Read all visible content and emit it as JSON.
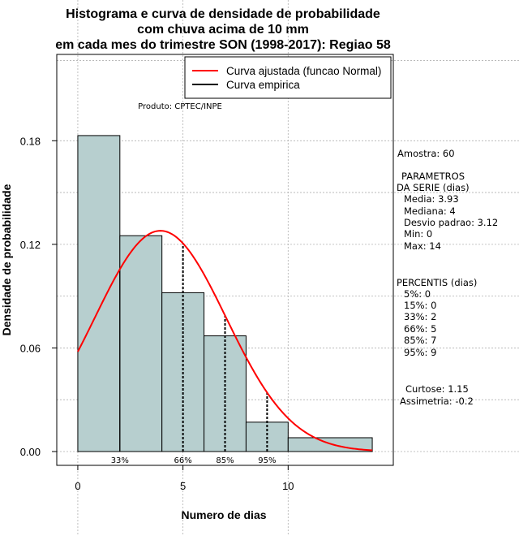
{
  "chart_data": {
    "type": "bar",
    "title_lines": [
      "Histograma e curva de densidade de probabilidade",
      "com chuva acima de 10 mm",
      "em cada mes do trimestre SON (1998-2017): Regiao 58"
    ],
    "xlabel": "Numero de dias",
    "ylabel": "Densidade de probabilidade",
    "xlim": [
      -1,
      15
    ],
    "ylim": [
      -0.008,
      0.23
    ],
    "x_ticks": [
      0,
      5,
      10
    ],
    "y_ticks": [
      0.0,
      0.06,
      0.12,
      0.18
    ],
    "y_tick_labels": [
      "0.00",
      "0.06",
      "0.12",
      "0.18"
    ],
    "bins": [
      {
        "x0": 0,
        "x1": 2,
        "density": 0.183
      },
      {
        "x0": 2,
        "x1": 4,
        "density": 0.125
      },
      {
        "x0": 4,
        "x1": 6,
        "density": 0.092
      },
      {
        "x0": 6,
        "x1": 8,
        "density": 0.067
      },
      {
        "x0": 8,
        "x1": 10,
        "density": 0.017
      },
      {
        "x0": 10,
        "x1": 14,
        "density": 0.008
      }
    ],
    "normal_fit": {
      "mean": 3.93,
      "sd": 3.12,
      "x_range": [
        0,
        14
      ]
    },
    "percentile_lines": [
      {
        "label": "33%",
        "x": 2
      },
      {
        "label": "66%",
        "x": 5
      },
      {
        "label": "85%",
        "x": 7
      },
      {
        "label": "95%",
        "x": 9
      }
    ],
    "legend": [
      {
        "label": "Curva ajustada (funcao Normal)",
        "color": "#ff0000"
      },
      {
        "label": "Curva empirica",
        "color": "#000000"
      }
    ],
    "annotation": "Produto: CPTEC/INPE",
    "colors": {
      "bar_fill": "#b7cfcf",
      "fit_line": "#ff0000",
      "grid": "#b0b0b0"
    }
  },
  "side_panel": {
    "amostra": "Amostra: 60",
    "param_title_1": "PARAMETROS",
    "param_title_2": "DA SERIE (dias)",
    "media": "Media: 3.93",
    "mediana": "Mediana: 4",
    "desvio": "Desvio padrao: 3.12",
    "min": "Min: 0",
    "max": "Max: 14",
    "percentis_title": "PERCENTIS (dias)",
    "p5": "5%: 0",
    "p15": "15%: 0",
    "p33": "33%: 2",
    "p66": "66%: 5",
    "p85": "85%: 7",
    "p95": "95%: 9",
    "curtose": "Curtose: 1.15",
    "assimetria": "Assimetria: -0.2"
  }
}
